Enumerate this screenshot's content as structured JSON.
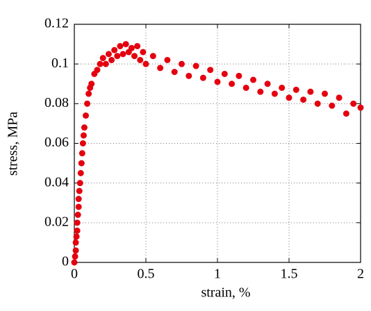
{
  "chart_data": {
    "type": "scatter",
    "xlabel": "strain,  %",
    "ylabel": "stress, MPa",
    "x": [
      0,
      0.005,
      0.01,
      0.01,
      0.015,
      0.02,
      0.02,
      0.025,
      0.03,
      0.03,
      0.035,
      0.04,
      0.045,
      0.05,
      0.055,
      0.06,
      0.065,
      0.07,
      0.08,
      0.09,
      0.1,
      0.11,
      0.12,
      0.14,
      0.16,
      0.18,
      0.2,
      0.22,
      0.24,
      0.26,
      0.28,
      0.3,
      0.32,
      0.34,
      0.36,
      0.38,
      0.4,
      0.42,
      0.44,
      0.46,
      0.48,
      0.5,
      0.55,
      0.6,
      0.65,
      0.7,
      0.75,
      0.8,
      0.85,
      0.9,
      0.95,
      1.0,
      1.05,
      1.1,
      1.15,
      1.2,
      1.25,
      1.3,
      1.35,
      1.4,
      1.45,
      1.5,
      1.55,
      1.6,
      1.65,
      1.7,
      1.75,
      1.8,
      1.85,
      1.9,
      1.95,
      2.0
    ],
    "values": [
      0,
      0.003,
      0.006,
      0.01,
      0.013,
      0.016,
      0.02,
      0.024,
      0.028,
      0.032,
      0.036,
      0.04,
      0.045,
      0.05,
      0.055,
      0.06,
      0.064,
      0.068,
      0.074,
      0.08,
      0.085,
      0.088,
      0.09,
      0.095,
      0.097,
      0.1,
      0.103,
      0.1,
      0.105,
      0.102,
      0.107,
      0.104,
      0.109,
      0.105,
      0.11,
      0.106,
      0.108,
      0.104,
      0.109,
      0.102,
      0.106,
      0.1,
      0.104,
      0.098,
      0.102,
      0.096,
      0.1,
      0.094,
      0.099,
      0.093,
      0.097,
      0.091,
      0.095,
      0.09,
      0.094,
      0.088,
      0.092,
      0.086,
      0.09,
      0.085,
      0.088,
      0.083,
      0.087,
      0.082,
      0.086,
      0.08,
      0.085,
      0.079,
      0.083,
      0.075,
      0.08,
      0.078
    ],
    "color": "#e3000f",
    "xlim": [
      0,
      2
    ],
    "xticks": [
      0,
      0.5,
      1,
      1.5,
      2
    ],
    "ylim": [
      0,
      0.12
    ],
    "yticks": [
      0,
      0.02,
      0.04,
      0.06,
      0.08,
      0.1,
      0.12
    ],
    "grid": true
  }
}
